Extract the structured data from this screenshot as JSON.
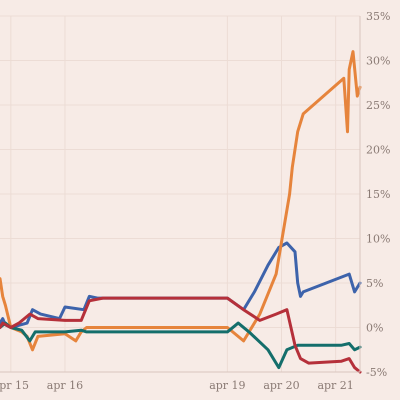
{
  "chart_data": {
    "type": "line",
    "title": "",
    "xlabel": "",
    "ylabel": "",
    "x_unit": "days",
    "xlim": [
      14.8,
      21.45
    ],
    "ylim": [
      -5,
      35
    ],
    "y_ticks": [
      -5,
      0,
      5,
      10,
      15,
      20,
      25,
      30,
      35
    ],
    "y_tick_labels": [
      "-5%",
      "0%",
      "5%",
      "10%",
      "15%",
      "20%",
      "25%",
      "30%",
      "35%"
    ],
    "y_axis_position": "right",
    "grid": "vertical and horizontal light gridlines",
    "x_ticks": [
      15,
      16,
      19,
      20,
      21
    ],
    "x_tick_labels": [
      "apr 15",
      "apr 16",
      "apr 19",
      "apr 20",
      "apr 21"
    ],
    "legend": "none",
    "series": [
      {
        "color": "#3d63ab",
        "points": [
          [
            14.8,
            0.5
          ],
          [
            14.85,
            1.0
          ],
          [
            14.9,
            0.3
          ],
          [
            15.0,
            0.0
          ],
          [
            15.3,
            0.5
          ],
          [
            15.4,
            2.0
          ],
          [
            15.55,
            1.5
          ],
          [
            15.9,
            1.0
          ],
          [
            16.0,
            2.3
          ],
          [
            16.35,
            2.0
          ],
          [
            16.45,
            3.5
          ],
          [
            16.6,
            3.3
          ],
          [
            19.0,
            3.3
          ],
          [
            19.3,
            2.0
          ],
          [
            19.5,
            4.0
          ],
          [
            19.75,
            7.0
          ],
          [
            19.95,
            9.0
          ],
          [
            20.1,
            9.5
          ],
          [
            20.25,
            8.5
          ],
          [
            20.3,
            5.0
          ],
          [
            20.35,
            3.5
          ],
          [
            20.4,
            4.0
          ],
          [
            21.25,
            6.0
          ],
          [
            21.35,
            4.0
          ],
          [
            21.45,
            5.0
          ]
        ]
      },
      {
        "color": "#e6843c",
        "points": [
          [
            14.8,
            5.5
          ],
          [
            14.85,
            3.5
          ],
          [
            14.9,
            2.5
          ],
          [
            15.0,
            0.0
          ],
          [
            15.2,
            -0.5
          ],
          [
            15.3,
            -1.0
          ],
          [
            15.4,
            -2.5
          ],
          [
            15.5,
            -1.0
          ],
          [
            16.0,
            -0.7
          ],
          [
            16.2,
            -1.5
          ],
          [
            16.3,
            -0.5
          ],
          [
            16.4,
            0.0
          ],
          [
            19.0,
            0.0
          ],
          [
            19.3,
            -1.5
          ],
          [
            19.6,
            1.5
          ],
          [
            19.9,
            6.0
          ],
          [
            20.15,
            15.0
          ],
          [
            20.2,
            18.0
          ],
          [
            20.3,
            22.0
          ],
          [
            20.4,
            24.0
          ],
          [
            21.15,
            28.0
          ],
          [
            21.22,
            22.0
          ],
          [
            21.25,
            29.0
          ],
          [
            21.32,
            31.0
          ],
          [
            21.4,
            26.0
          ],
          [
            21.45,
            27.0
          ]
        ]
      },
      {
        "color": "#146e6b",
        "points": [
          [
            14.8,
            0.0
          ],
          [
            14.9,
            0.5
          ],
          [
            15.0,
            0.0
          ],
          [
            15.2,
            -0.3
          ],
          [
            15.35,
            -1.5
          ],
          [
            15.45,
            -0.5
          ],
          [
            16.0,
            -0.5
          ],
          [
            16.3,
            -0.3
          ],
          [
            16.4,
            -0.5
          ],
          [
            19.0,
            -0.5
          ],
          [
            19.2,
            0.5
          ],
          [
            19.4,
            -0.5
          ],
          [
            19.75,
            -2.5
          ],
          [
            19.95,
            -4.5
          ],
          [
            20.1,
            -2.5
          ],
          [
            20.3,
            -2.0
          ],
          [
            21.1,
            -2.0
          ],
          [
            21.25,
            -1.8
          ],
          [
            21.35,
            -2.5
          ],
          [
            21.45,
            -2.2
          ]
        ]
      },
      {
        "color": "#b5303a",
        "points": [
          [
            14.8,
            0.0
          ],
          [
            14.85,
            0.5
          ],
          [
            15.0,
            0.0
          ],
          [
            15.15,
            0.5
          ],
          [
            15.35,
            1.5
          ],
          [
            15.5,
            1.0
          ],
          [
            16.0,
            0.8
          ],
          [
            16.3,
            0.8
          ],
          [
            16.45,
            3.0
          ],
          [
            16.7,
            3.3
          ],
          [
            19.0,
            3.3
          ],
          [
            19.3,
            2.0
          ],
          [
            19.6,
            0.8
          ],
          [
            19.9,
            1.5
          ],
          [
            20.1,
            2.0
          ],
          [
            20.25,
            -2.0
          ],
          [
            20.35,
            -3.5
          ],
          [
            20.5,
            -4.0
          ],
          [
            21.1,
            -3.8
          ],
          [
            21.25,
            -3.5
          ],
          [
            21.35,
            -4.5
          ],
          [
            21.45,
            -5.0
          ]
        ]
      }
    ]
  }
}
